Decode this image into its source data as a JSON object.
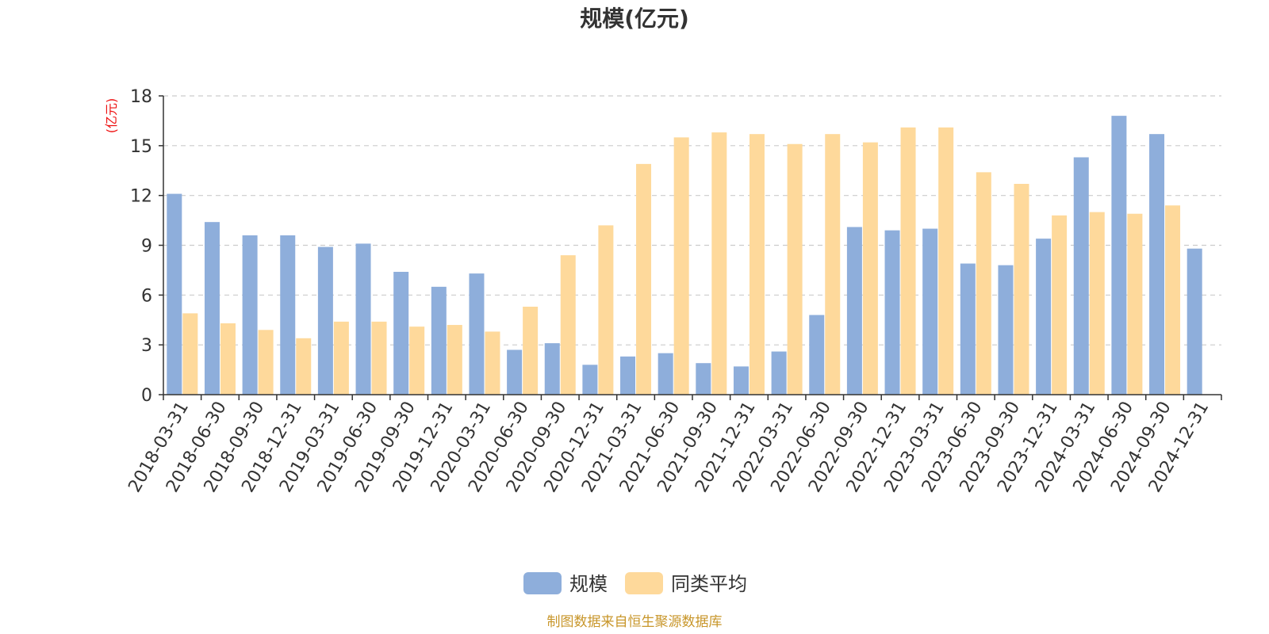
{
  "chart_data": {
    "type": "bar",
    "title": "规模(亿元)",
    "ylabel": "(亿元)",
    "xlabel": "",
    "ylim": [
      0,
      18
    ],
    "yticks": [
      0,
      3,
      6,
      9,
      12,
      15,
      18
    ],
    "grid": true,
    "legend_position": "bottom-center",
    "categories": [
      "2018-03-31",
      "2018-06-30",
      "2018-09-30",
      "2018-12-31",
      "2019-03-31",
      "2019-06-30",
      "2019-09-30",
      "2019-12-31",
      "2020-03-31",
      "2020-06-30",
      "2020-09-30",
      "2020-12-31",
      "2021-03-31",
      "2021-06-30",
      "2021-09-30",
      "2021-12-31",
      "2022-03-31",
      "2022-06-30",
      "2022-09-30",
      "2022-12-31",
      "2023-03-31",
      "2023-06-30",
      "2023-09-30",
      "2023-12-31",
      "2024-03-31",
      "2024-06-30",
      "2024-09-30",
      "2024-12-31"
    ],
    "series": [
      {
        "name": "规模",
        "color": "#8eaedb",
        "values": [
          12.1,
          10.4,
          9.6,
          9.6,
          8.9,
          9.1,
          7.4,
          6.5,
          7.3,
          2.7,
          3.1,
          1.8,
          2.3,
          2.5,
          1.9,
          1.7,
          2.6,
          4.8,
          10.1,
          9.9,
          10.0,
          7.9,
          7.8,
          9.4,
          14.3,
          16.8,
          15.7,
          8.8
        ]
      },
      {
        "name": "同类平均",
        "color": "#fed99b",
        "values": [
          4.9,
          4.3,
          3.9,
          3.4,
          4.4,
          4.4,
          4.1,
          4.2,
          3.8,
          5.3,
          8.4,
          10.2,
          13.9,
          15.5,
          15.8,
          15.7,
          15.1,
          15.7,
          15.2,
          16.1,
          16.1,
          13.4,
          12.7,
          10.8,
          11.0,
          10.9,
          11.4,
          null
        ]
      }
    ]
  },
  "source": "制图数据来自恒生聚源数据库"
}
